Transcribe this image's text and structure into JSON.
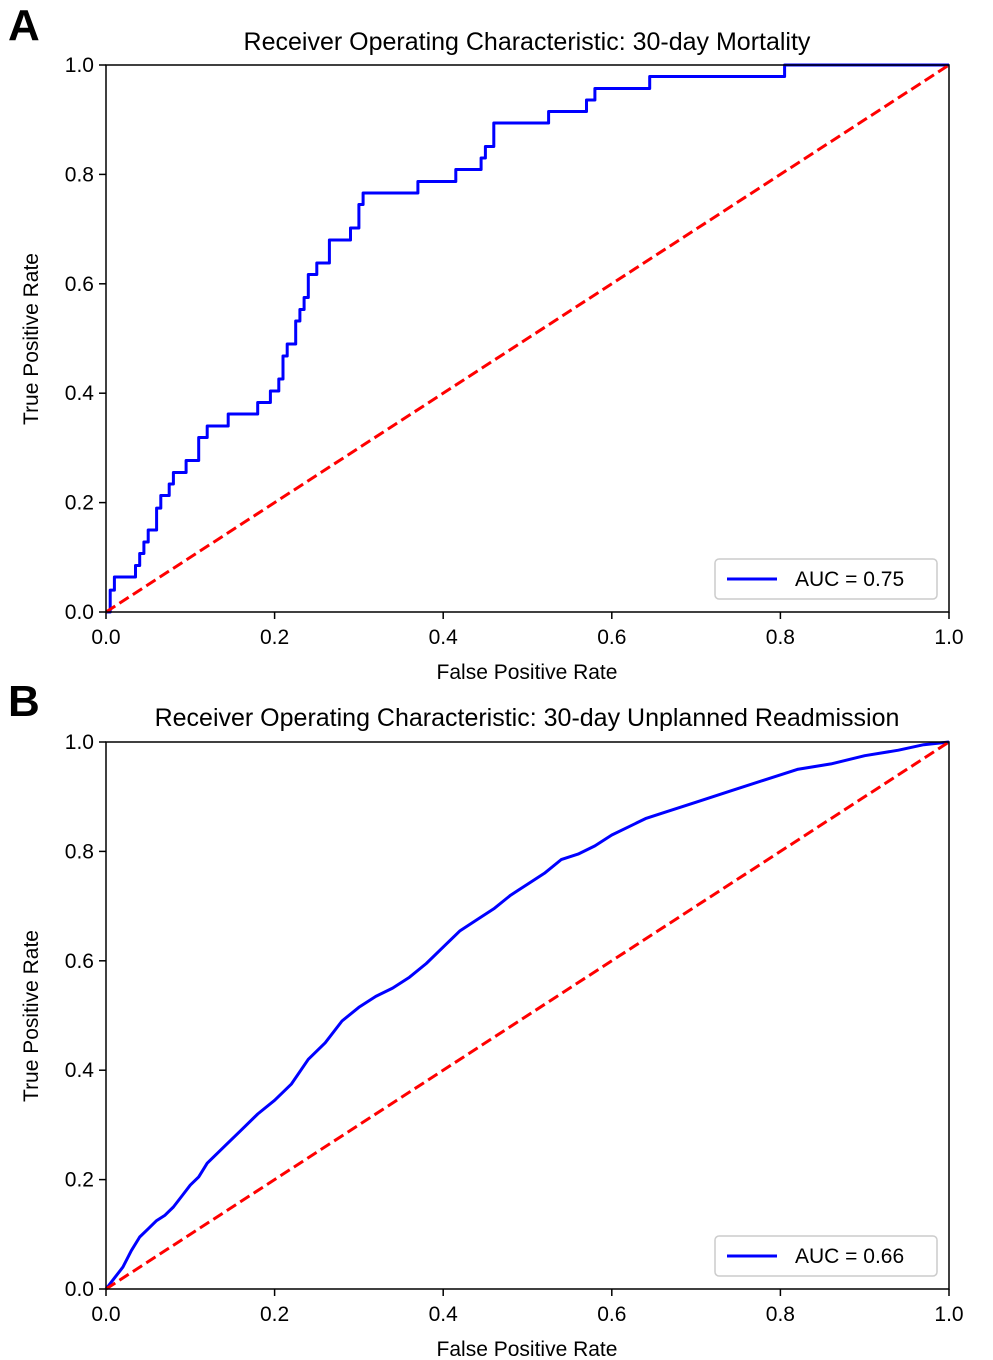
{
  "chart_data": [
    {
      "type": "line",
      "panel_letter": "A",
      "title": "Receiver Operating Characteristic: 30-day Mortality",
      "xlabel": "False Positive Rate",
      "ylabel": "True Positive Rate",
      "xlim": [
        0.0,
        1.0
      ],
      "ylim": [
        0.0,
        1.0
      ],
      "xticks": [
        "0.0",
        "0.2",
        "0.4",
        "0.6",
        "0.8",
        "1.0"
      ],
      "yticks": [
        "0.0",
        "0.2",
        "0.4",
        "0.6",
        "0.8",
        "1.0"
      ],
      "grid": false,
      "legend_position": "lower right",
      "series": [
        {
          "name": "AUC = 0.75",
          "color": "#0000ff",
          "style": "solid",
          "x": [
            0.0,
            0.005,
            0.005,
            0.01,
            0.01,
            0.035,
            0.035,
            0.04,
            0.04,
            0.045,
            0.045,
            0.05,
            0.05,
            0.06,
            0.06,
            0.065,
            0.065,
            0.075,
            0.075,
            0.08,
            0.08,
            0.095,
            0.095,
            0.11,
            0.11,
            0.12,
            0.12,
            0.145,
            0.145,
            0.18,
            0.18,
            0.195,
            0.195,
            0.205,
            0.205,
            0.21,
            0.21,
            0.215,
            0.215,
            0.225,
            0.225,
            0.23,
            0.23,
            0.235,
            0.235,
            0.24,
            0.24,
            0.25,
            0.25,
            0.265,
            0.265,
            0.29,
            0.29,
            0.3,
            0.3,
            0.305,
            0.305,
            0.315,
            0.315,
            0.325,
            0.325,
            0.37,
            0.37,
            0.415,
            0.415,
            0.445,
            0.445,
            0.45,
            0.45,
            0.46,
            0.46,
            0.525,
            0.525,
            0.57,
            0.57,
            0.58,
            0.58,
            0.645,
            0.645,
            0.805,
            0.805,
            1.0
          ],
          "y": [
            0.0,
            0.0,
            0.04,
            0.04,
            0.064,
            0.064,
            0.085,
            0.085,
            0.107,
            0.107,
            0.128,
            0.128,
            0.15,
            0.15,
            0.19,
            0.19,
            0.213,
            0.213,
            0.234,
            0.234,
            0.255,
            0.255,
            0.277,
            0.277,
            0.319,
            0.319,
            0.34,
            0.34,
            0.362,
            0.362,
            0.383,
            0.383,
            0.404,
            0.404,
            0.426,
            0.426,
            0.468,
            0.468,
            0.49,
            0.49,
            0.532,
            0.532,
            0.553,
            0.553,
            0.575,
            0.575,
            0.617,
            0.617,
            0.638,
            0.638,
            0.68,
            0.68,
            0.702,
            0.702,
            0.745,
            0.745,
            0.766,
            0.766,
            0.766,
            0.766,
            0.766,
            0.766,
            0.787,
            0.787,
            0.809,
            0.809,
            0.83,
            0.83,
            0.851,
            0.851,
            0.894,
            0.894,
            0.915,
            0.915,
            0.936,
            0.936,
            0.957,
            0.957,
            0.979,
            0.979,
            1.0,
            1.0
          ]
        },
        {
          "name": "",
          "color": "#ff0000",
          "style": "dashed",
          "x": [
            0.0,
            1.0
          ],
          "y": [
            0.0,
            1.0
          ]
        }
      ]
    },
    {
      "type": "line",
      "panel_letter": "B",
      "title": "Receiver Operating Characteristic: 30-day Unplanned Readmission",
      "xlabel": "False Positive Rate",
      "ylabel": "True Positive Rate",
      "xlim": [
        0.0,
        1.0
      ],
      "ylim": [
        0.0,
        1.0
      ],
      "xticks": [
        "0.0",
        "0.2",
        "0.4",
        "0.6",
        "0.8",
        "1.0"
      ],
      "yticks": [
        "0.0",
        "0.2",
        "0.4",
        "0.6",
        "0.8",
        "1.0"
      ],
      "grid": false,
      "legend_position": "lower right",
      "series": [
        {
          "name": "AUC = 0.66",
          "color": "#0000ff",
          "style": "solid",
          "x": [
            0.0,
            0.01,
            0.02,
            0.03,
            0.04,
            0.05,
            0.06,
            0.07,
            0.08,
            0.09,
            0.1,
            0.11,
            0.12,
            0.14,
            0.16,
            0.18,
            0.2,
            0.22,
            0.24,
            0.26,
            0.28,
            0.3,
            0.32,
            0.34,
            0.36,
            0.38,
            0.4,
            0.42,
            0.44,
            0.46,
            0.48,
            0.5,
            0.52,
            0.54,
            0.56,
            0.58,
            0.6,
            0.62,
            0.64,
            0.66,
            0.7,
            0.74,
            0.78,
            0.82,
            0.86,
            0.9,
            0.94,
            0.97,
            1.0
          ],
          "y": [
            0.0,
            0.02,
            0.04,
            0.07,
            0.095,
            0.11,
            0.125,
            0.135,
            0.15,
            0.17,
            0.19,
            0.205,
            0.23,
            0.26,
            0.29,
            0.32,
            0.345,
            0.375,
            0.42,
            0.45,
            0.49,
            0.515,
            0.535,
            0.55,
            0.57,
            0.595,
            0.625,
            0.655,
            0.675,
            0.695,
            0.72,
            0.74,
            0.76,
            0.785,
            0.795,
            0.81,
            0.83,
            0.845,
            0.86,
            0.87,
            0.89,
            0.91,
            0.93,
            0.95,
            0.96,
            0.975,
            0.985,
            0.995,
            1.0
          ]
        },
        {
          "name": "",
          "color": "#ff0000",
          "style": "dashed",
          "x": [
            0.0,
            1.0
          ],
          "y": [
            0.0,
            1.0
          ]
        }
      ]
    }
  ]
}
